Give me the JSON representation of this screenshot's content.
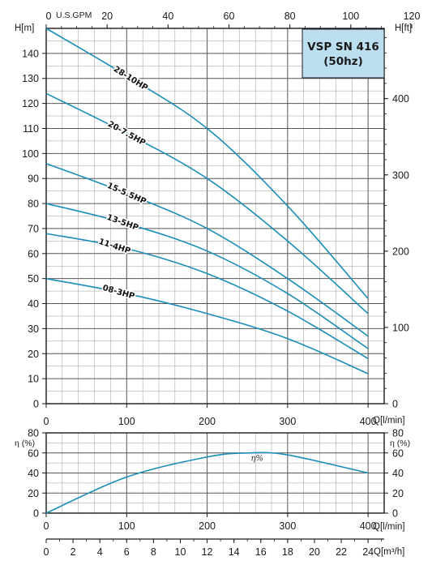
{
  "chart_data": [
    {
      "type": "line",
      "title": "VSP SN 416",
      "subtitle": "(50hz)",
      "xlabel": "Q[l/min]",
      "ylabel": "H[m]",
      "ylabel_right": "H[ft]",
      "xlabel_top": "U.S.GPM",
      "xlim": [
        0,
        420
      ],
      "ylim": [
        0,
        150
      ],
      "x_ticks": [
        "0",
        "100",
        "200",
        "300",
        "400"
      ],
      "y_ticks": [
        "0",
        "10",
        "20",
        "30",
        "40",
        "50",
        "60",
        "70",
        "80",
        "90",
        "100",
        "110",
        "120",
        "130",
        "140"
      ],
      "top_ticks": [
        "0",
        "20",
        "40",
        "60",
        "80",
        "100",
        "120"
      ],
      "right_ticks": [
        "0",
        "100",
        "200",
        "300",
        "400"
      ],
      "grid": true,
      "series": [
        {
          "name": "28-10HP",
          "x": [
            0,
            100,
            200,
            300,
            400
          ],
          "y": [
            150,
            131,
            110,
            79,
            42
          ]
        },
        {
          "name": "20-7.5HP",
          "x": [
            0,
            100,
            200,
            300,
            400
          ],
          "y": [
            124,
            108,
            90,
            65,
            36
          ]
        },
        {
          "name": "15-5.5HP",
          "x": [
            0,
            100,
            200,
            300,
            400
          ],
          "y": [
            96,
            84,
            70,
            50,
            27
          ]
        },
        {
          "name": "13-5HP",
          "x": [
            0,
            100,
            200,
            300,
            400
          ],
          "y": [
            80,
            72,
            61,
            44,
            22
          ]
        },
        {
          "name": "11-4HP",
          "x": [
            0,
            100,
            200,
            300,
            400
          ],
          "y": [
            68,
            62,
            52,
            37,
            18
          ]
        },
        {
          "name": "08-3HP",
          "x": [
            0,
            100,
            200,
            300,
            400
          ],
          "y": [
            50,
            44,
            36,
            26,
            12
          ]
        }
      ]
    },
    {
      "type": "line",
      "xlabel": "Q[l/min]",
      "xlabel_bottom": "Q[m³/h]",
      "ylabel": "η (%)",
      "ylabel_right": "η (%)",
      "xlim": [
        0,
        420
      ],
      "ylim": [
        0,
        80
      ],
      "x_ticks": [
        "0",
        "100",
        "200",
        "300",
        "400"
      ],
      "y_ticks": [
        "0",
        "20",
        "40",
        "60",
        "80"
      ],
      "bottom_ticks": [
        "0",
        "2",
        "4",
        "6",
        "8",
        "10",
        "12",
        "14",
        "16",
        "18",
        "20",
        "22",
        "24"
      ],
      "grid": true,
      "series": [
        {
          "name": "η%",
          "x": [
            0,
            100,
            200,
            250,
            300,
            400
          ],
          "y": [
            0,
            36,
            56,
            60,
            58,
            40
          ]
        }
      ]
    }
  ],
  "colors": {
    "curve": "#1a8db8",
    "grid": "#9a9a9a",
    "title_box": "#bcdff0",
    "axis": "#1a1a1a"
  }
}
